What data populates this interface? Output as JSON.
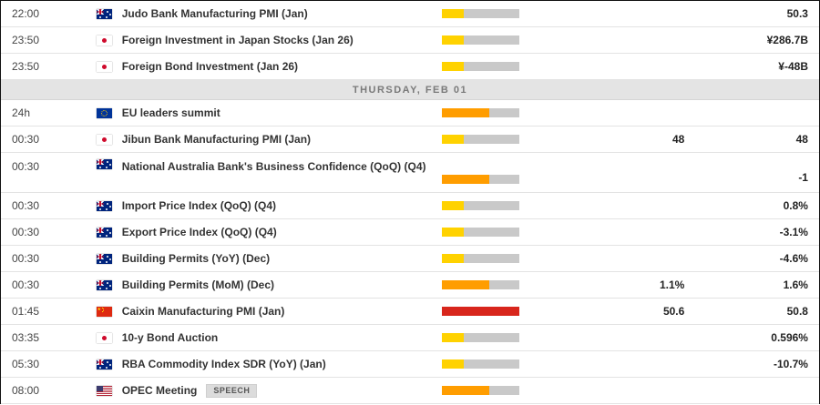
{
  "day_header": "THURSDAY, FEB 01",
  "colors": {
    "importance_low": "#ffd200",
    "importance_medium": "#ff9d00",
    "importance_high": "#d8261c",
    "bar_track": "#c9c9c9",
    "day_header_bg": "#e4e4e4"
  },
  "rows": [
    {
      "time": "22:00",
      "country": "australia",
      "event": "Judo Bank Manufacturing PMI (Jan)",
      "importance": "low",
      "forecast": "",
      "previous": "50.3"
    },
    {
      "time": "23:50",
      "country": "japan",
      "event": "Foreign Investment in Japan Stocks (Jan 26)",
      "importance": "low",
      "forecast": "",
      "previous": "¥286.7B"
    },
    {
      "time": "23:50",
      "country": "japan",
      "event": "Foreign Bond Investment (Jan 26)",
      "importance": "low",
      "forecast": "",
      "previous": "¥-48B"
    },
    {
      "time": "24h",
      "country": "eu",
      "event": "EU leaders summit",
      "importance": "medium",
      "forecast": "",
      "previous": ""
    },
    {
      "time": "00:30",
      "country": "japan",
      "event": "Jibun Bank Manufacturing PMI (Jan)",
      "importance": "low",
      "forecast": "48",
      "previous": "48"
    },
    {
      "time": "00:30",
      "country": "australia",
      "event": "National Australia Bank's Business Confidence (QoQ) (Q4)",
      "importance": "medium",
      "forecast": "",
      "previous": "-1"
    },
    {
      "time": "00:30",
      "country": "australia",
      "event": "Import Price Index (QoQ) (Q4)",
      "importance": "low",
      "forecast": "",
      "previous": "0.8%"
    },
    {
      "time": "00:30",
      "country": "australia",
      "event": "Export Price Index (QoQ) (Q4)",
      "importance": "low",
      "forecast": "",
      "previous": "-3.1%"
    },
    {
      "time": "00:30",
      "country": "australia",
      "event": "Building Permits (YoY) (Dec)",
      "importance": "low",
      "forecast": "",
      "previous": "-4.6%"
    },
    {
      "time": "00:30",
      "country": "australia",
      "event": "Building Permits (MoM) (Dec)",
      "importance": "medium",
      "forecast": "1.1%",
      "previous": "1.6%"
    },
    {
      "time": "01:45",
      "country": "china",
      "event": "Caixin Manufacturing PMI (Jan)",
      "importance": "high",
      "forecast": "50.6",
      "previous": "50.8"
    },
    {
      "time": "03:35",
      "country": "japan",
      "event": "10-y Bond Auction",
      "importance": "low",
      "forecast": "",
      "previous": "0.596%"
    },
    {
      "time": "05:30",
      "country": "australia",
      "event": "RBA Commodity Index SDR (YoY) (Jan)",
      "importance": "low",
      "forecast": "",
      "previous": "-10.7%"
    },
    {
      "time": "08:00",
      "country": "us",
      "event": "OPEC Meeting",
      "importance": "medium",
      "forecast": "",
      "previous": "",
      "badge": "SPEECH"
    }
  ]
}
